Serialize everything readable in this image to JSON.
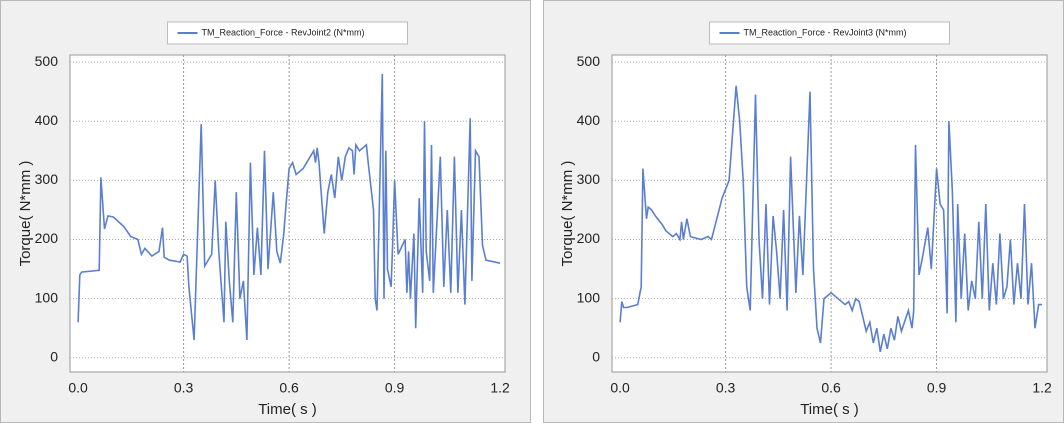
{
  "chart_data": [
    {
      "type": "line",
      "x_label": "Time( s )",
      "y_label": "Torque( N*mm )",
      "grid": true,
      "xlim": [
        -0.023,
        1.214
      ],
      "ylim": [
        -24,
        512
      ],
      "xticks": [
        {
          "value": 0,
          "label": "0.0"
        },
        0.3,
        0.6,
        0.9,
        1.2
      ],
      "yticks": [
        0,
        100,
        200,
        300,
        400,
        500
      ],
      "x": [
        0,
        0.005,
        0.01,
        0.06,
        0.065,
        0.075,
        0.085,
        0.1,
        0.13,
        0.15,
        0.17,
        0.18,
        0.19,
        0.21,
        0.23,
        0.24,
        0.245,
        0.26,
        0.29,
        0.3,
        0.31,
        0.315,
        0.33,
        0.35,
        0.36,
        0.38,
        0.39,
        0.4,
        0.415,
        0.42,
        0.43,
        0.44,
        0.45,
        0.46,
        0.47,
        0.48,
        0.49,
        0.5,
        0.51,
        0.52,
        0.53,
        0.54,
        0.555,
        0.565,
        0.575,
        0.585,
        0.59,
        0.6,
        0.61,
        0.62,
        0.64,
        0.66,
        0.67,
        0.675,
        0.68,
        0.685,
        0.7,
        0.71,
        0.72,
        0.73,
        0.74,
        0.75,
        0.76,
        0.77,
        0.78,
        0.785,
        0.79,
        0.8,
        0.82,
        0.825,
        0.84,
        0.845,
        0.85,
        0.865,
        0.87,
        0.875,
        0.88,
        0.89,
        0.895,
        0.9,
        0.91,
        0.93,
        0.935,
        0.94,
        0.945,
        0.955,
        0.96,
        0.97,
        0.98,
        0.985,
        0.99,
        1.0,
        1.005,
        1.01,
        1.03,
        1.04,
        1.05,
        1.06,
        1.07,
        1.08,
        1.09,
        1.1,
        1.115,
        1.12,
        1.13,
        1.14,
        1.15,
        1.16,
        1.2
      ],
      "series": [
        {
          "name": "TM_Reaction_Force - RevJoint2 (N*mm)",
          "color": "#5b7fd0",
          "values": [
            60,
            140,
            145,
            148,
            305,
            218,
            240,
            238,
            222,
            205,
            200,
            175,
            185,
            172,
            180,
            220,
            170,
            165,
            162,
            175,
            172,
            120,
            30,
            395,
            155,
            175,
            300,
            180,
            60,
            230,
            130,
            60,
            280,
            100,
            130,
            30,
            330,
            140,
            220,
            140,
            350,
            150,
            280,
            180,
            160,
            210,
            250,
            320,
            330,
            310,
            320,
            340,
            350,
            330,
            355,
            330,
            210,
            280,
            310,
            270,
            340,
            300,
            340,
            355,
            350,
            310,
            360,
            350,
            360,
            330,
            250,
            100,
            80,
            480,
            100,
            350,
            150,
            120,
            200,
            300,
            175,
            200,
            110,
            180,
            100,
            210,
            50,
            270,
            110,
            400,
            180,
            130,
            360,
            110,
            340,
            120,
            250,
            110,
            340,
            110,
            250,
            90,
            405,
            130,
            350,
            340,
            190,
            165,
            160
          ]
        }
      ]
    },
    {
      "type": "line",
      "x_label": "Time( s )",
      "y_label": "Torque( N*mm )",
      "grid": true,
      "xlim": [
        -0.023,
        1.214
      ],
      "ylim": [
        -24,
        512
      ],
      "xticks": [
        {
          "value": 0,
          "label": "0.0"
        },
        0.3,
        0.6,
        0.9,
        1.2
      ],
      "yticks": [
        0,
        100,
        200,
        300,
        400,
        500
      ],
      "x": [
        0,
        0.005,
        0.01,
        0.02,
        0.05,
        0.06,
        0.065,
        0.075,
        0.08,
        0.09,
        0.1,
        0.12,
        0.13,
        0.15,
        0.16,
        0.17,
        0.175,
        0.18,
        0.19,
        0.2,
        0.23,
        0.25,
        0.26,
        0.29,
        0.31,
        0.33,
        0.34,
        0.35,
        0.36,
        0.37,
        0.385,
        0.395,
        0.405,
        0.415,
        0.425,
        0.435,
        0.445,
        0.455,
        0.465,
        0.475,
        0.485,
        0.5,
        0.51,
        0.52,
        0.54,
        0.55,
        0.56,
        0.57,
        0.58,
        0.6,
        0.62,
        0.64,
        0.65,
        0.66,
        0.67,
        0.68,
        0.7,
        0.71,
        0.72,
        0.73,
        0.735,
        0.74,
        0.75,
        0.76,
        0.77,
        0.78,
        0.79,
        0.8,
        0.82,
        0.83,
        0.835,
        0.84,
        0.85,
        0.86,
        0.875,
        0.885,
        0.9,
        0.91,
        0.92,
        0.925,
        0.93,
        0.935,
        0.945,
        0.955,
        0.96,
        0.97,
        0.98,
        0.99,
        1.0,
        1.01,
        1.02,
        1.03,
        1.04,
        1.05,
        1.06,
        1.07,
        1.08,
        1.09,
        1.1,
        1.11,
        1.12,
        1.13,
        1.14,
        1.15,
        1.16,
        1.17,
        1.18,
        1.19,
        1.2
      ],
      "series": [
        {
          "name": "TM_Reaction_Force - RevJoint3 (N*mm)",
          "color": "#5b7fd0",
          "values": [
            60,
            95,
            85,
            85,
            90,
            120,
            320,
            235,
            255,
            250,
            240,
            225,
            215,
            205,
            210,
            200,
            230,
            200,
            235,
            205,
            200,
            205,
            200,
            270,
            300,
            460,
            400,
            300,
            120,
            80,
            445,
            200,
            100,
            260,
            90,
            240,
            180,
            100,
            250,
            80,
            340,
            110,
            240,
            140,
            450,
            150,
            50,
            25,
            100,
            110,
            100,
            90,
            95,
            80,
            100,
            95,
            45,
            60,
            25,
            50,
            30,
            10,
            40,
            15,
            50,
            30,
            70,
            45,
            80,
            50,
            80,
            360,
            140,
            170,
            220,
            150,
            320,
            260,
            250,
            170,
            75,
            400,
            280,
            60,
            260,
            100,
            210,
            80,
            130,
            100,
            230,
            100,
            260,
            80,
            160,
            90,
            210,
            100,
            120,
            200,
            90,
            160,
            100,
            260,
            90,
            160,
            50,
            90,
            90
          ]
        }
      ]
    }
  ]
}
